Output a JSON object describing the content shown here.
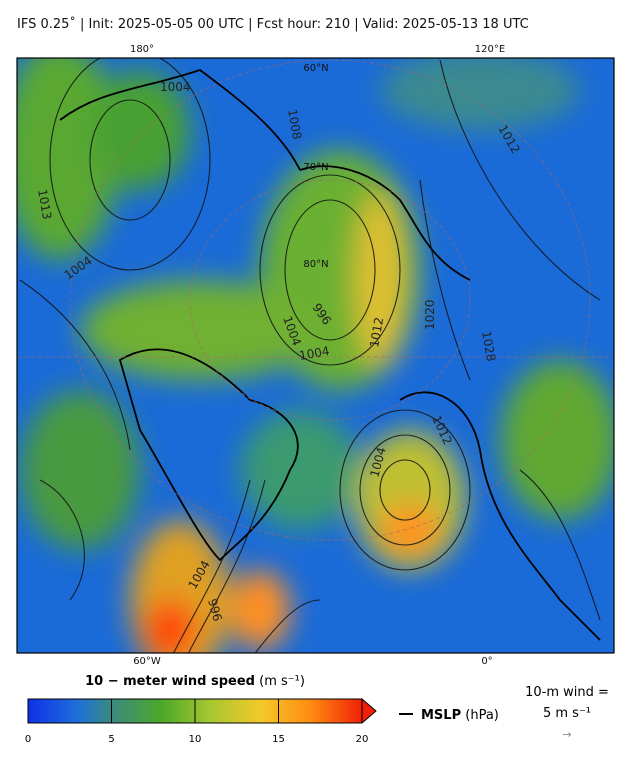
{
  "header": {
    "title": "IFS 0.25˚  |  Init: 2025-05-05 00 UTC  |  Fcst hour: 210  |  Valid: 2025-05-13 18 UTC"
  },
  "map": {
    "lon_labels_top": [
      "180°",
      "120°E"
    ],
    "lon_labels_bottom": [
      "60°W",
      "0°"
    ],
    "lat_labels": [
      "60°N",
      "70°N",
      "80°N"
    ],
    "contour_labels": [
      "1004",
      "1004",
      "1004",
      "996",
      "1004",
      "1012",
      "1020",
      "1028",
      "1012",
      "1004",
      "1004",
      "996",
      "1012",
      "1013",
      "1008"
    ]
  },
  "colorbar": {
    "label": "10 − meter wind speed",
    "unit": "(m s⁻¹)",
    "ticks": [
      0,
      5,
      10,
      15,
      20
    ]
  },
  "legend": {
    "mslp": "MSLP",
    "mslp_unit": "(hPa)",
    "wind_key": "10-m wind =",
    "wind_key_value": "5 m s⁻¹",
    "wind_arrow": "→"
  }
}
